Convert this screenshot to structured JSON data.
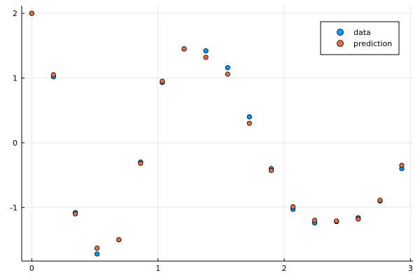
{
  "chart_data": {
    "type": "scatter",
    "title": "",
    "xlabel": "",
    "ylabel": "",
    "xlim": [
      -0.08,
      3.02
    ],
    "ylim": [
      -1.83,
      2.12
    ],
    "xticks": [
      0,
      1,
      2,
      3
    ],
    "xtick_labels": [
      "0",
      "1",
      "2",
      "3"
    ],
    "yticks": [
      -1,
      0,
      1,
      2
    ],
    "ytick_labels": [
      "-1",
      "0",
      "1",
      "2"
    ],
    "grid": true,
    "legend_position": "top-right",
    "x": [
      0.0,
      0.172,
      0.345,
      0.517,
      0.69,
      0.862,
      1.034,
      1.207,
      1.379,
      1.552,
      1.724,
      1.897,
      2.069,
      2.241,
      2.414,
      2.586,
      2.759,
      2.931
    ],
    "series": [
      {
        "name": "data",
        "color": "#009AF9",
        "values": [
          2.0,
          1.02,
          -1.08,
          -1.72,
          -1.5,
          -0.3,
          0.93,
          1.45,
          1.42,
          1.16,
          0.4,
          -0.4,
          -1.03,
          -1.24,
          -1.22,
          -1.16,
          -0.9,
          -0.4
        ]
      },
      {
        "name": "prediction",
        "color": "#E26F46",
        "values": [
          2.0,
          1.05,
          -1.1,
          -1.63,
          -1.5,
          -0.32,
          0.95,
          1.45,
          1.32,
          1.06,
          0.3,
          -0.43,
          -0.99,
          -1.2,
          -1.21,
          -1.18,
          -0.89,
          -0.35
        ]
      }
    ]
  }
}
